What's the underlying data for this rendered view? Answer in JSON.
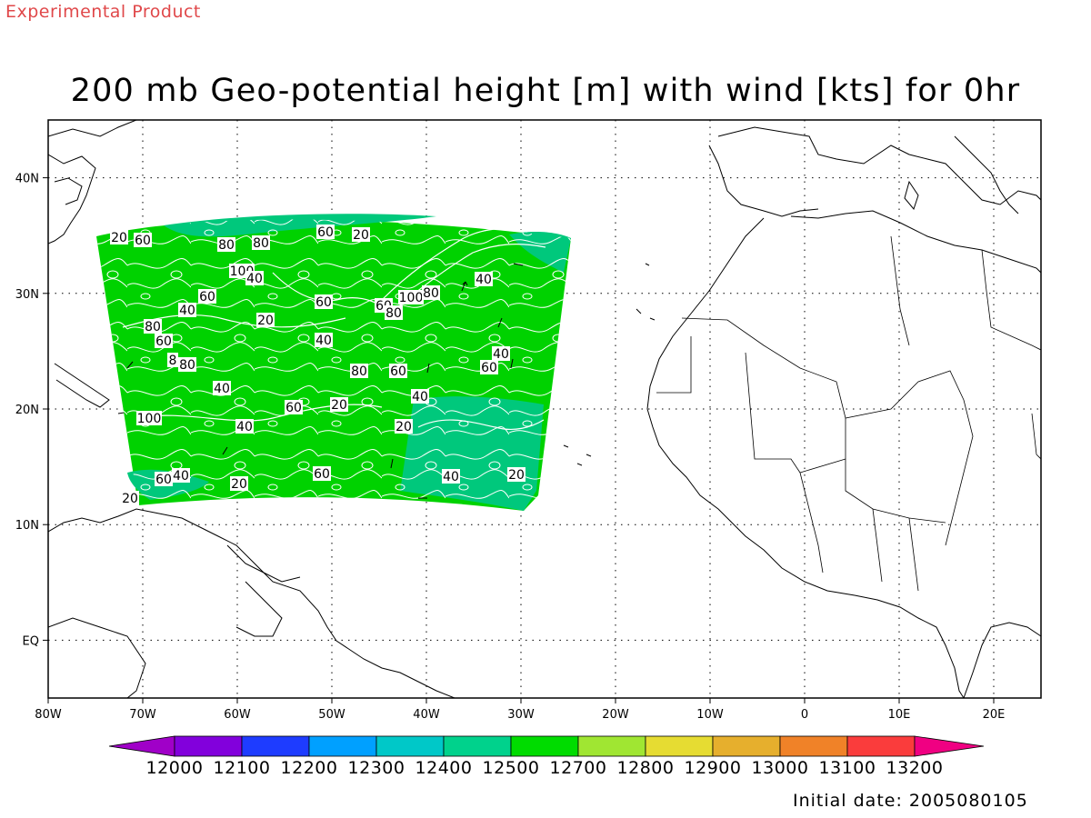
{
  "header": {
    "product_label": "Experimental Product",
    "title": "200 mb Geo-potential height [m] with wind [kts] for 0hr"
  },
  "map": {
    "lon_ticks": [
      "80W",
      "70W",
      "60W",
      "50W",
      "40W",
      "30W",
      "20W",
      "10W",
      "0",
      "10E",
      "20E"
    ],
    "lat_ticks": [
      "40N",
      "30N",
      "20N",
      "10N",
      "EQ"
    ],
    "wind_speed_labels": [
      "20",
      "60",
      "80",
      "80",
      "60",
      "20",
      "100",
      "40",
      "40",
      "60",
      "40",
      "60",
      "60",
      "80",
      "100",
      "80",
      "20",
      "80",
      "60",
      "40",
      "8",
      "80",
      "40",
      "60",
      "40",
      "60",
      "80",
      "60",
      "20",
      "40",
      "100",
      "20",
      "60",
      "40",
      "20",
      "60",
      "40",
      "20",
      "40",
      "20"
    ],
    "field_colors": {
      "12500": "#00c87c",
      "12700": "#00d200",
      "land_outline": "#000000",
      "contour": "#ffffff"
    }
  },
  "colorbar": {
    "labels": [
      "12000",
      "12100",
      "12200",
      "12300",
      "12400",
      "12500",
      "12700",
      "12800",
      "12900",
      "13000",
      "13100",
      "13200"
    ],
    "colors": [
      "#a000c8",
      "#8200dc",
      "#1e3cff",
      "#00a0ff",
      "#00c8c8",
      "#00d28c",
      "#00dc00",
      "#a0e632",
      "#e6dc32",
      "#e6af2d",
      "#f08228",
      "#fa3c3c",
      "#f00082"
    ]
  },
  "footer": {
    "initial_date": "Initial date: 2005080105"
  }
}
